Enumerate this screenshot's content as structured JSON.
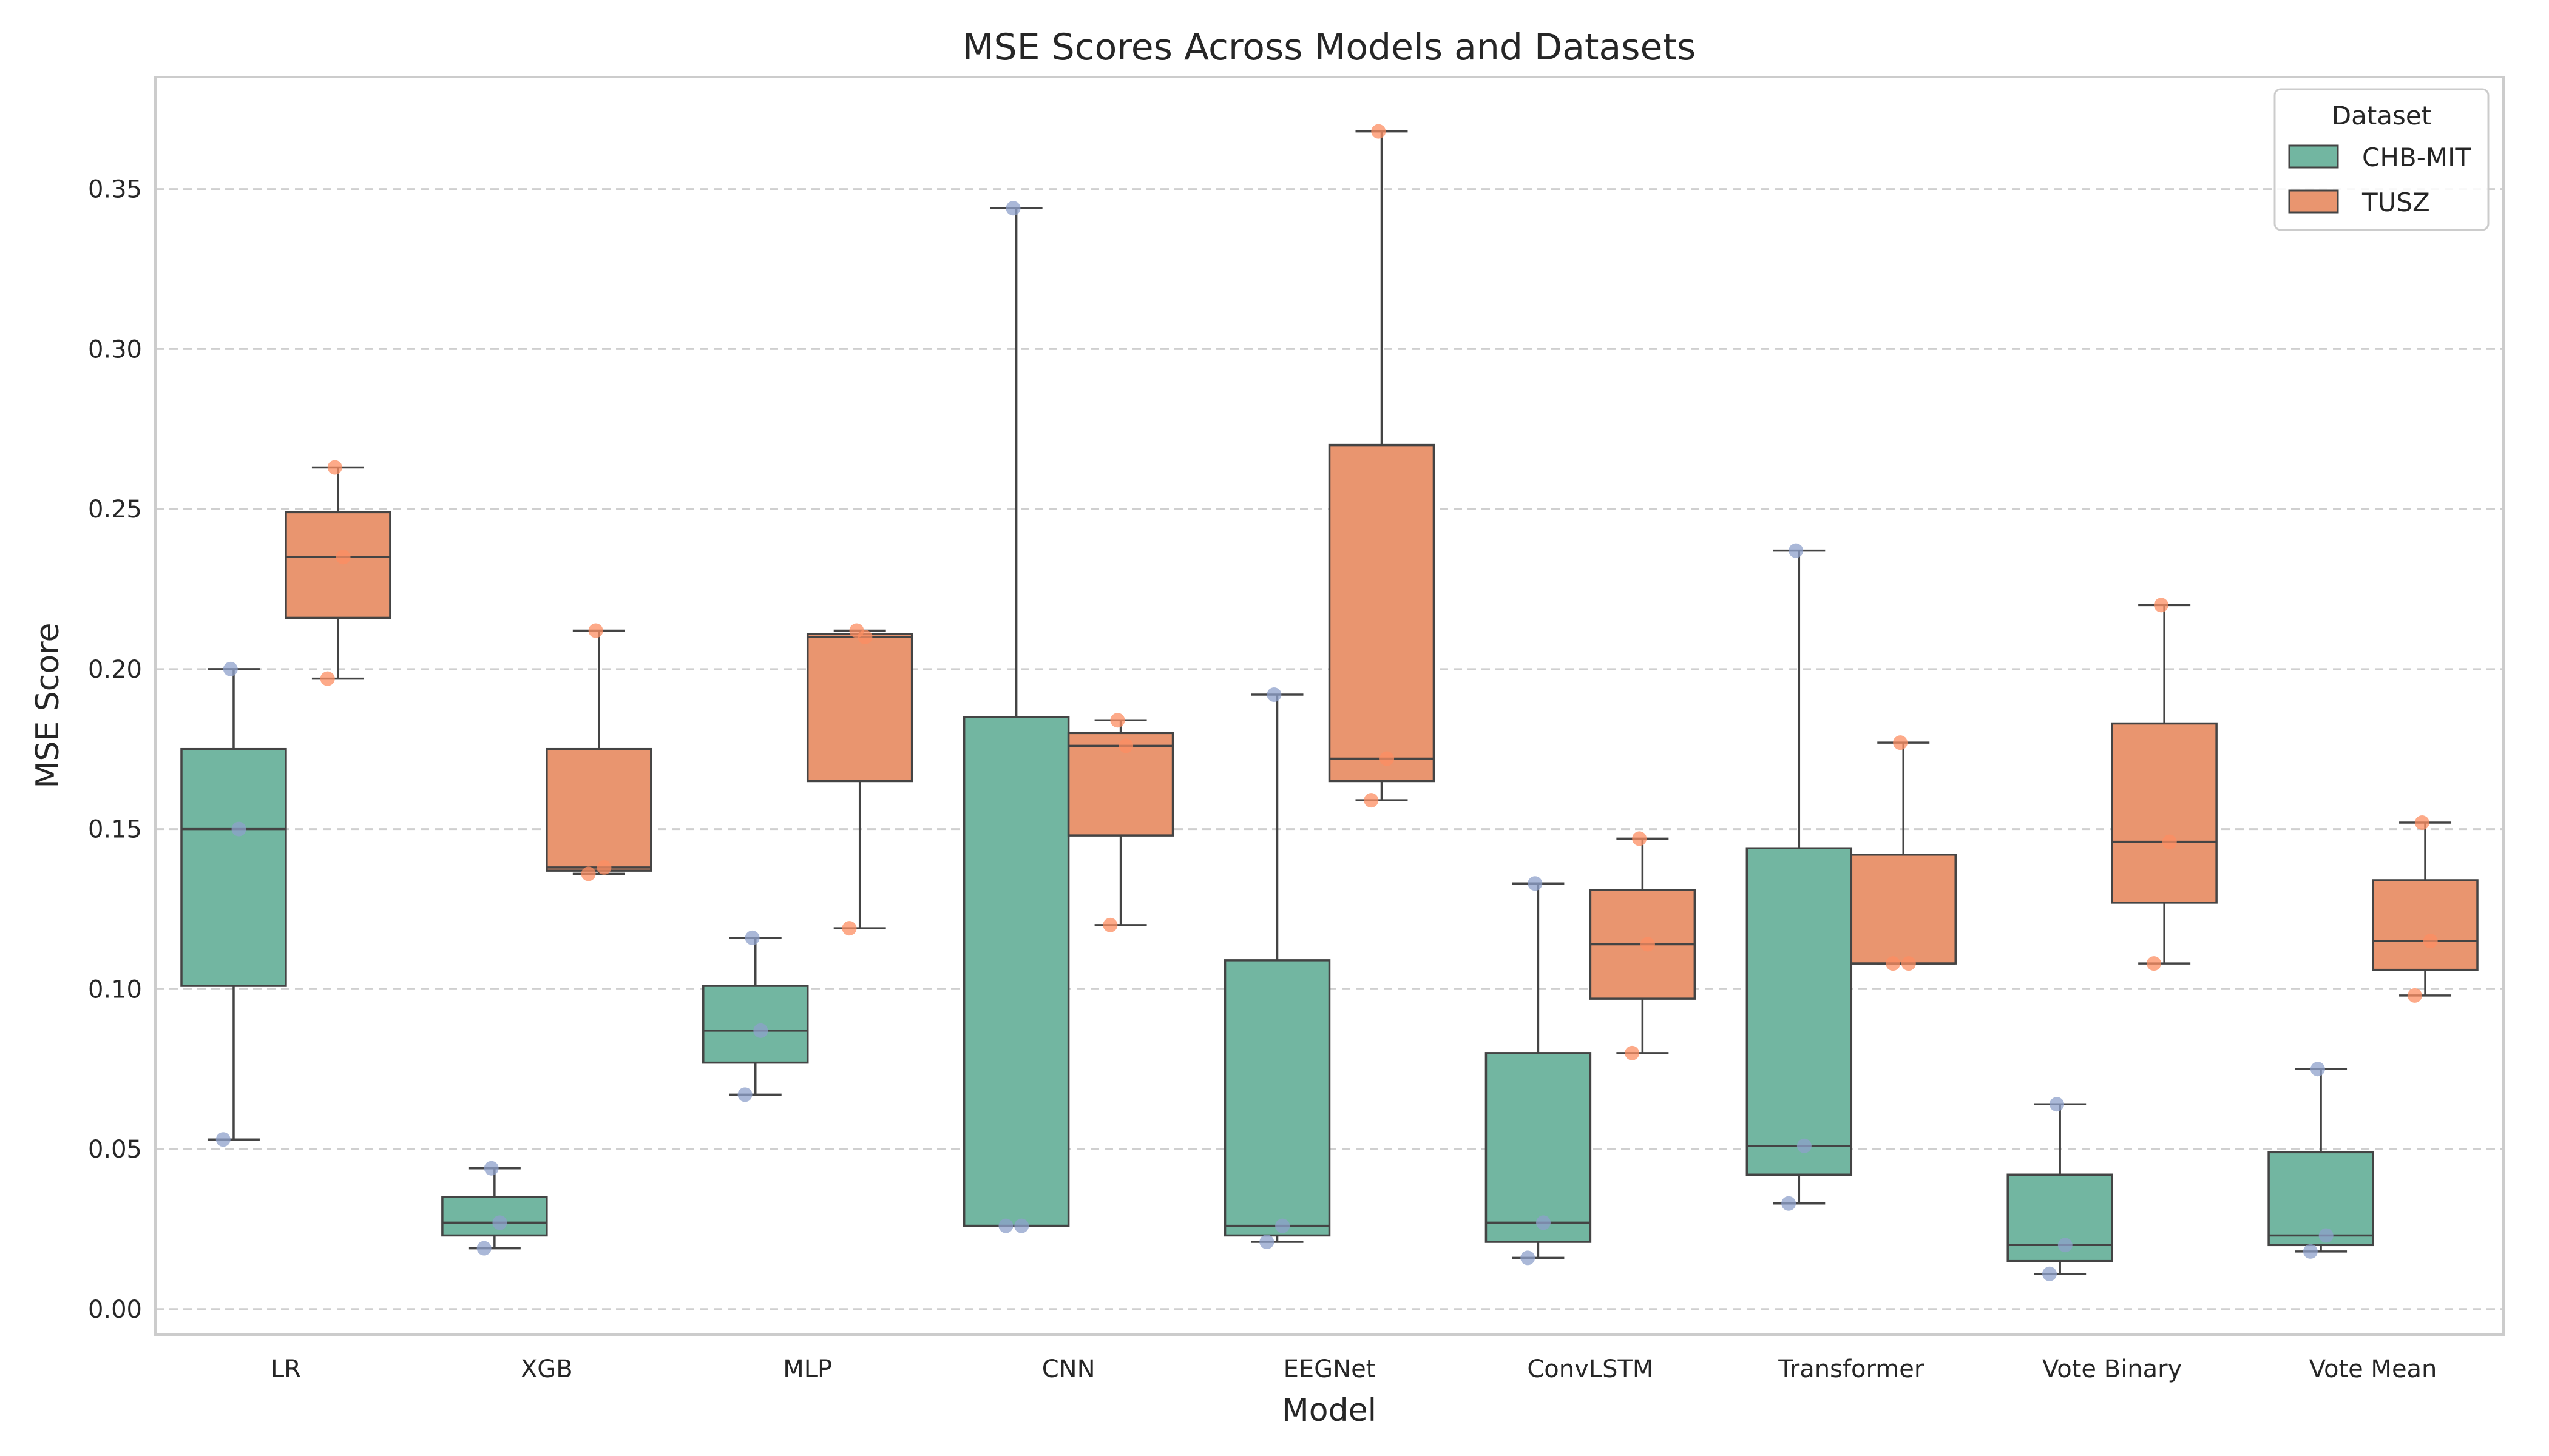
{
  "chart_data": {
    "type": "box",
    "title": "MSE Scores Across Models and Datasets",
    "xlabel": "Model",
    "ylabel": "MSE Score",
    "ylim": [
      -0.008,
      0.385
    ],
    "yticks": [
      0.0,
      0.05,
      0.1,
      0.15,
      0.2,
      0.25,
      0.3,
      0.35
    ],
    "ytick_labels": [
      "0.00",
      "0.05",
      "0.10",
      "0.15",
      "0.20",
      "0.25",
      "0.30",
      "0.35"
    ],
    "grid": "y-dashed",
    "legend": {
      "title": "Dataset",
      "placement": "top-right"
    },
    "categories": [
      "LR",
      "XGB",
      "MLP",
      "CNN",
      "EEGNet",
      "ConvLSTM",
      "Transformer",
      "Vote Binary",
      "Vote Mean"
    ],
    "series": [
      {
        "name": "CHB-MIT",
        "color": "#72b6a1",
        "point_color": "#8da0cb",
        "boxes": [
          {
            "whislo": 0.053,
            "q1": 0.101,
            "med": 0.15,
            "q3": 0.175,
            "whishi": 0.2,
            "points": [
              0.053,
              0.15,
              0.2
            ]
          },
          {
            "whislo": 0.019,
            "q1": 0.023,
            "med": 0.027,
            "q3": 0.035,
            "whishi": 0.044,
            "points": [
              0.019,
              0.027,
              0.044
            ]
          },
          {
            "whislo": 0.067,
            "q1": 0.077,
            "med": 0.087,
            "q3": 0.101,
            "whishi": 0.116,
            "points": [
              0.067,
              0.087,
              0.116
            ]
          },
          {
            "whislo": 0.026,
            "q1": 0.026,
            "med": 0.026,
            "q3": 0.185,
            "whishi": 0.344,
            "points": [
              0.026,
              0.026,
              0.344
            ]
          },
          {
            "whislo": 0.021,
            "q1": 0.023,
            "med": 0.026,
            "q3": 0.109,
            "whishi": 0.192,
            "points": [
              0.021,
              0.026,
              0.192
            ]
          },
          {
            "whislo": 0.016,
            "q1": 0.021,
            "med": 0.027,
            "q3": 0.08,
            "whishi": 0.133,
            "points": [
              0.016,
              0.027,
              0.133
            ]
          },
          {
            "whislo": 0.033,
            "q1": 0.042,
            "med": 0.051,
            "q3": 0.144,
            "whishi": 0.237,
            "points": [
              0.033,
              0.051,
              0.237
            ]
          },
          {
            "whislo": 0.011,
            "q1": 0.015,
            "med": 0.02,
            "q3": 0.042,
            "whishi": 0.064,
            "points": [
              0.011,
              0.02,
              0.064
            ]
          },
          {
            "whislo": 0.018,
            "q1": 0.02,
            "med": 0.023,
            "q3": 0.049,
            "whishi": 0.075,
            "points": [
              0.018,
              0.023,
              0.075
            ]
          }
        ]
      },
      {
        "name": "TUSZ",
        "color": "#e9956f",
        "point_color": "#fc8d62",
        "boxes": [
          {
            "whislo": 0.197,
            "q1": 0.216,
            "med": 0.235,
            "q3": 0.249,
            "whishi": 0.263,
            "points": [
              0.197,
              0.235,
              0.263
            ]
          },
          {
            "whislo": 0.136,
            "q1": 0.137,
            "med": 0.138,
            "q3": 0.175,
            "whishi": 0.212,
            "points": [
              0.136,
              0.138,
              0.212
            ]
          },
          {
            "whislo": 0.119,
            "q1": 0.165,
            "med": 0.21,
            "q3": 0.211,
            "whishi": 0.212,
            "points": [
              0.119,
              0.21,
              0.212
            ]
          },
          {
            "whislo": 0.12,
            "q1": 0.148,
            "med": 0.176,
            "q3": 0.18,
            "whishi": 0.184,
            "points": [
              0.12,
              0.176,
              0.184
            ]
          },
          {
            "whislo": 0.159,
            "q1": 0.165,
            "med": 0.172,
            "q3": 0.27,
            "whishi": 0.368,
            "points": [
              0.159,
              0.172,
              0.368
            ]
          },
          {
            "whislo": 0.08,
            "q1": 0.097,
            "med": 0.114,
            "q3": 0.131,
            "whishi": 0.147,
            "points": [
              0.08,
              0.114,
              0.147
            ]
          },
          {
            "whislo": 0.108,
            "q1": 0.108,
            "med": 0.108,
            "q3": 0.142,
            "whishi": 0.177,
            "points": [
              0.108,
              0.108,
              0.177
            ]
          },
          {
            "whislo": 0.108,
            "q1": 0.127,
            "med": 0.146,
            "q3": 0.183,
            "whishi": 0.22,
            "points": [
              0.108,
              0.146,
              0.22
            ]
          },
          {
            "whislo": 0.098,
            "q1": 0.106,
            "med": 0.115,
            "q3": 0.134,
            "whishi": 0.152,
            "points": [
              0.098,
              0.115,
              0.152
            ]
          }
        ]
      }
    ]
  }
}
